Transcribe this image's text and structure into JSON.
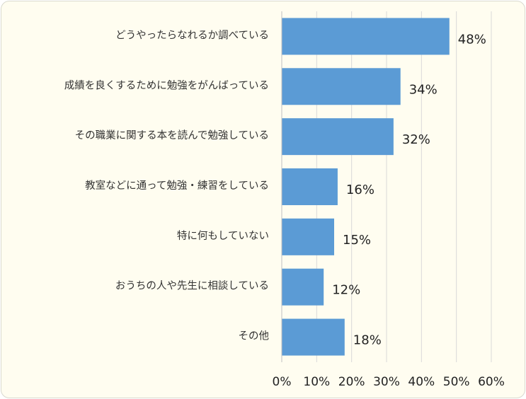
{
  "chart_data": {
    "type": "bar",
    "orientation": "horizontal",
    "categories": [
      "どうやったらなれるか調べている",
      "成績を良くするために勉強をがんばっている",
      "その職業に関する本を読んで勉強している",
      "教室などに通って勉強・練習をしている",
      "特に何もしていない",
      "おうちの人や先生に相談している",
      "その他"
    ],
    "values": [
      48,
      34,
      32,
      16,
      15,
      12,
      18
    ],
    "value_labels": [
      "48%",
      "34%",
      "32%",
      "16%",
      "15%",
      "12%",
      "18%"
    ],
    "xlim": [
      0,
      60
    ],
    "x_ticks": [
      "0%",
      "10%",
      "20%",
      "30%",
      "40%",
      "50%",
      "60%"
    ],
    "grid": "vertical",
    "bar_color": "#5b9bd5",
    "grid_color": "#d9d9d9",
    "background_color": "#fffdf0",
    "title": "",
    "xlabel": "",
    "ylabel": ""
  }
}
